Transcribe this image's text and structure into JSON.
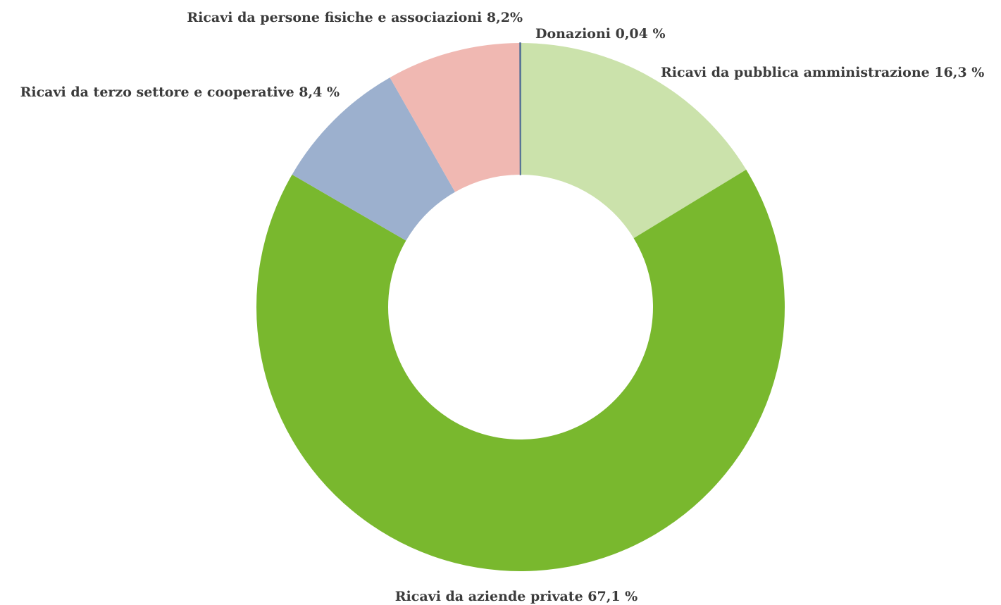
{
  "chart_data": {
    "type": "pie",
    "variant": "donut",
    "start": "top",
    "direction": "clockwise",
    "legend": "none",
    "slices": [
      {
        "name": "Ricavi da pubblica amministrazione",
        "value": 16.3,
        "label": "Ricavi da pubblica amministrazione 16,3 %",
        "color": "#cbe2ab"
      },
      {
        "name": "Ricavi da aziende private",
        "value": 67.1,
        "label": "Ricavi da aziende private 67,1 %",
        "color": "#79b82e"
      },
      {
        "name": "Ricavi da terzo settore e cooperative",
        "value": 8.4,
        "label": "Ricavi da terzo settore e cooperative 8,4 %",
        "color": "#9cb0ce"
      },
      {
        "name": "Ricavi da persone fisiche e associazioni",
        "value": 8.2,
        "label": "Ricavi da persone fisiche e associazioni 8,2%",
        "color": "#f0b8b2"
      },
      {
        "name": "Donazioni",
        "value": 0.04,
        "label": "Donazioni 0,04 %",
        "color": "#4f6d94"
      }
    ]
  }
}
